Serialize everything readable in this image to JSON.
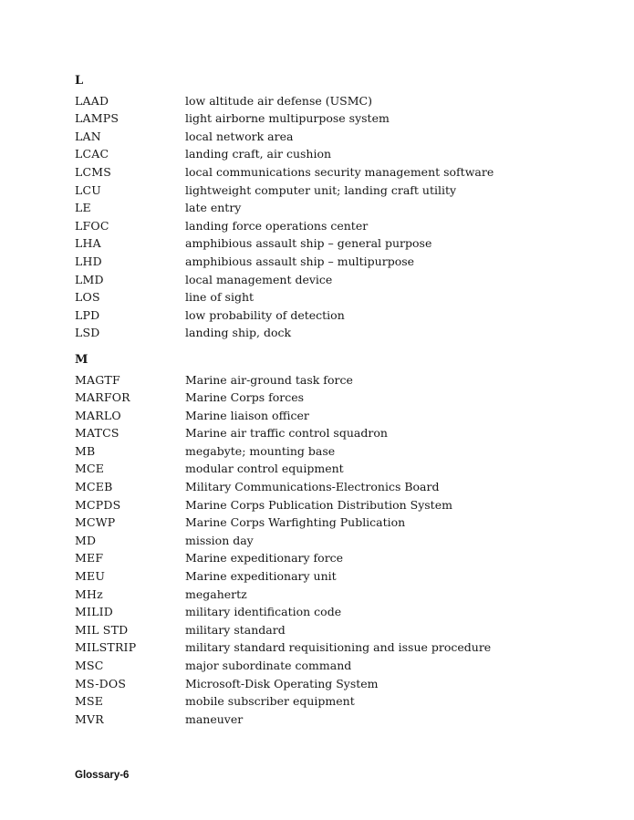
{
  "document": {
    "footer": "Glossary-6"
  },
  "sections": [
    {
      "letter": "L",
      "entries": [
        {
          "abbr": "LAAD",
          "def": "low altitude air defense (USMC)"
        },
        {
          "abbr": "LAMPS",
          "def": "light airborne multipurpose system"
        },
        {
          "abbr": "LAN",
          "def": "local network area"
        },
        {
          "abbr": "LCAC",
          "def": "landing craft, air cushion"
        },
        {
          "abbr": "LCMS",
          "def": "local communications security management software"
        },
        {
          "abbr": "LCU",
          "def": "lightweight computer unit; landing craft utility"
        },
        {
          "abbr": "LE",
          "def": "late entry"
        },
        {
          "abbr": "LFOC",
          "def": "landing force operations center"
        },
        {
          "abbr": "LHA",
          "def": "amphibious assault ship – general purpose"
        },
        {
          "abbr": "LHD",
          "def": "amphibious assault ship – multipurpose"
        },
        {
          "abbr": "LMD",
          "def": "local management device"
        },
        {
          "abbr": "LOS",
          "def": "line of sight"
        },
        {
          "abbr": "LPD",
          "def": "low probability of detection"
        },
        {
          "abbr": "LSD",
          "def": "landing ship, dock"
        }
      ]
    },
    {
      "letter": "M",
      "entries": [
        {
          "abbr": "MAGTF",
          "def": "Marine air-ground task force"
        },
        {
          "abbr": "MARFOR",
          "def": "Marine Corps forces"
        },
        {
          "abbr": "MARLO",
          "def": "Marine liaison officer"
        },
        {
          "abbr": "MATCS",
          "def": "Marine air traffic control squadron"
        },
        {
          "abbr": "MB",
          "def": "megabyte; mounting base"
        },
        {
          "abbr": "MCE",
          "def": "modular control equipment"
        },
        {
          "abbr": "MCEB",
          "def": "Military Communications-Electronics Board"
        },
        {
          "abbr": "MCPDS",
          "def": "Marine Corps Publication Distribution System"
        },
        {
          "abbr": "MCWP",
          "def": "Marine Corps Warfighting Publication"
        },
        {
          "abbr": "MD",
          "def": "mission day"
        },
        {
          "abbr": "MEF",
          "def": "Marine expeditionary force"
        },
        {
          "abbr": "MEU",
          "def": "Marine expeditionary unit"
        },
        {
          "abbr": "MHz",
          "def": "megahertz"
        },
        {
          "abbr": "MILID",
          "def": "military identification code"
        },
        {
          "abbr": "MIL STD",
          "def": "military standard"
        },
        {
          "abbr": "MILSTRIP",
          "def": "military standard requisitioning and issue procedure"
        },
        {
          "abbr": "MSC",
          "def": "major subordinate command"
        },
        {
          "abbr": "MS-DOS",
          "def": "Microsoft-Disk Operating System"
        },
        {
          "abbr": "MSE",
          "def": "mobile subscriber equipment"
        },
        {
          "abbr": "MVR",
          "def": "maneuver"
        }
      ]
    }
  ]
}
